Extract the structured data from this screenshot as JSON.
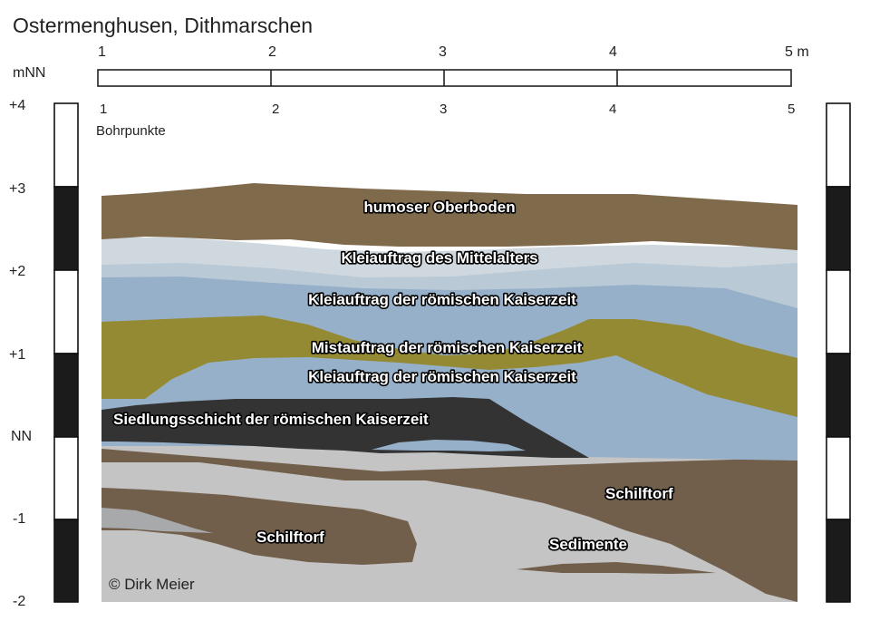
{
  "title": "Ostermenghusen, Dithmarschen",
  "scale_bar": {
    "ticks": [
      "1",
      "2",
      "3",
      "4",
      "5 m"
    ]
  },
  "boreholes": {
    "label": "Bohrpunkte",
    "numbers": [
      "1",
      "2",
      "3",
      "4",
      "5"
    ]
  },
  "elevation_axis": {
    "unit": "mNN",
    "labels": [
      "+4",
      "+3",
      "+2",
      "+1",
      "NN",
      "-1",
      "-2"
    ]
  },
  "layers": {
    "humoser_oberboden": "humoser Oberboden",
    "klei_mittelalter": "Kleiauftrag des Mittelalters",
    "klei_roemisch_1": "Kleiauftrag der römischen Kaiserzeit",
    "mist_roemisch": "Mistauftrag der römischen Kaiserzeit",
    "klei_roemisch_2": "Kleiauftrag der römischen Kaiserzeit",
    "siedlung": "Siedlungsschicht der römischen Kaiserzeit",
    "schilftorf_right": "Schilftorf",
    "schilftorf_left": "Schilftorf",
    "sedimente": "Sedimente"
  },
  "colors": {
    "oberboden": "#806a4c",
    "klei_mittelalter": "#cfd8df",
    "klei_light": "#b9c9d6",
    "klei_roemisch": "#97b0c9",
    "mist": "#958a34",
    "siedlung": "#333333",
    "schilftorf": "#725f4b",
    "sedimente": "#c4c4c4",
    "sediment_dark": "#a7a9ab"
  },
  "copyright": "© Dirk Meier"
}
